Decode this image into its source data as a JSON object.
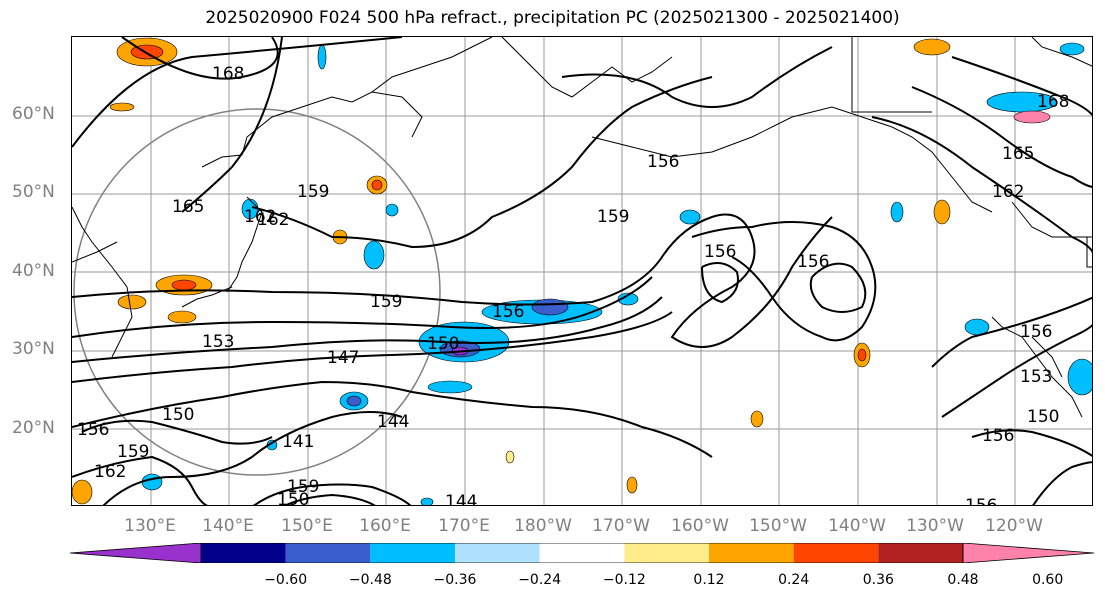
{
  "title": "2025020900 F024 500 hPa refract., precipitation PC (2025021300 - 2025021400)",
  "map": {
    "lat_labels": [
      "60°N",
      "50°N",
      "40°N",
      "30°N",
      "20°N"
    ],
    "lon_labels": [
      "130°E",
      "140°E",
      "150°E",
      "160°E",
      "170°E",
      "180°W",
      "170°W",
      "160°W",
      "150°W",
      "140°W",
      "130°W",
      "120°W"
    ],
    "contour_labels": [
      "168",
      "165",
      "162",
      "159",
      "159",
      "159",
      "156",
      "156",
      "156",
      "156",
      "153",
      "150",
      "147",
      "144",
      "141",
      "150",
      "156",
      "159",
      "162",
      "165",
      "162",
      "156",
      "153",
      "150",
      "156",
      "144",
      "156",
      "159",
      "150",
      "168",
      "162"
    ]
  },
  "colorbar": {
    "ticks": [
      "−0.60",
      "−0.48",
      "−0.36",
      "−0.24",
      "−0.12",
      "0.12",
      "0.24",
      "0.36",
      "0.48",
      "0.60"
    ],
    "colors": [
      "#9932cc",
      "#00008b",
      "#3a5fcd",
      "#00bfff",
      "#b0e2ff",
      "#ffffff",
      "#ffec8b",
      "#ffa500",
      "#ff4500",
      "#b22222",
      "#ff82ab"
    ]
  }
}
